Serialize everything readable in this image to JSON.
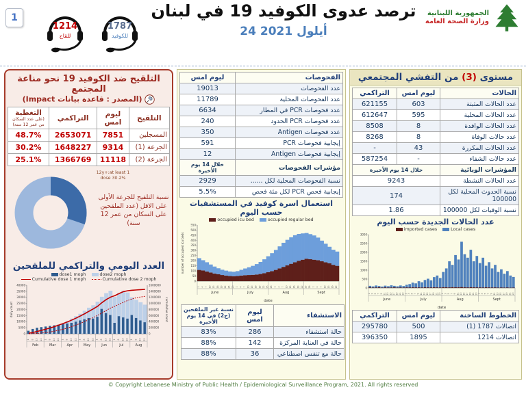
{
  "header": {
    "page_number": "1",
    "title": "ترصد عدوى الكوفيد 19 في لبنان",
    "date": "24 أيلول 2021",
    "hotline_vaccine": {
      "number": "1214",
      "label": "للقاح"
    },
    "hotline_covid": {
      "number": "1787",
      "label": "للكوفيد"
    },
    "ministry_line1": "الجمهورية اللبنانية",
    "ministry_line2": "وزارة الصحة العامة"
  },
  "vaccination": {
    "title": "التلقيح ضد الكوفيد 19  نحو مناعة المجتمع",
    "source": "(المصدر : قاعدة بيانات Impact)",
    "col_vaccination": "التلقيح",
    "col_yesterday": "ليوم امس",
    "col_cumulative": "التراكمي",
    "col_coverage": "التغطية",
    "col_coverage_note": "(على عدد السكان من عمر 12 سنة)",
    "rows": [
      {
        "label": "المسجلين",
        "yesterday": "7851",
        "cumulative": "2653071",
        "coverage": "48.7%"
      },
      {
        "label": "الجرعة (1)",
        "yesterday": "9314",
        "cumulative": "1648227",
        "coverage": "30.2%"
      },
      {
        "label": "الجرعة (2)",
        "yesterday": "11118",
        "cumulative": "1366769",
        "coverage": "25.1%"
      }
    ],
    "donut_note": "12y+:at least 1 dose 30.2%",
    "donut_caption": "نسبة التلقيح للجرعة الأولى على الاقل (عدد الملقحين على السكان من عمر 12 سنة)",
    "daily_chart_title": "العدد اليومي والتراكمي للملقحين"
  },
  "tests": {
    "col_label": "الفحوصات",
    "col_yesterday": "ليوم امس",
    "rows": [
      {
        "label": "عدد الفحوصات",
        "value": "19013"
      },
      {
        "label": "عدد الفحوصات المحلية",
        "value": "11789"
      },
      {
        "label": "عدد فحوصات PCR في المطار",
        "value": "6634"
      },
      {
        "label": "عدد فحوصات PCR الحدود",
        "value": "240"
      },
      {
        "label": "عدد فحوصات Antigen",
        "value": "350"
      },
      {
        "label": "إيجابية فحوصات PCR",
        "value": "591"
      },
      {
        "label": "إيجابية فحوصات Antigen",
        "value": "12"
      }
    ],
    "section_label": "مؤشرات الفحوصات",
    "section_value": "خلال 14 يوم الأخيرة",
    "indicator_rows": [
      {
        "label": "نسبة الفحوصات المحلية لكل ......",
        "value": "2929"
      },
      {
        "label": "إيجابية فحص PCR لكل مئة فحص",
        "value": "5.5%"
      }
    ],
    "beds_chart_title": "استعمال اسرة كوفيد في المستشفيات حسب اليوم"
  },
  "hospitalization": {
    "col_label": "الاستشفاء",
    "col_yesterday": "ليوم امس",
    "col_unvaccinated": "نسبة غير الملقحين (ج2) في 14 يوم الأخيرة",
    "rows": [
      {
        "label": "حالة استشفاء",
        "value": "286",
        "pct": "83%"
      },
      {
        "label": "حالة في العناية المركزة",
        "value": "142",
        "pct": "88%"
      },
      {
        "label": "حالة مع تنفس اصطناعي",
        "value": "36",
        "pct": "88%"
      }
    ]
  },
  "outbreak": {
    "title_pre": "مستوى",
    "title_level": "(3)",
    "title_post": "من التفشي المجتمعي",
    "col_label": "الحالات",
    "col_yesterday": "ليوم امس",
    "col_cumulative": "التراكمي",
    "rows": [
      {
        "label": "عدد الحالات المثبتة",
        "yesterday": "603",
        "cumulative": "621155"
      },
      {
        "label": "عدد الحالات المحلية",
        "yesterday": "595",
        "cumulative": "612647"
      },
      {
        "label": "عدد الحالات الوافدة",
        "yesterday": "8",
        "cumulative": "8508"
      },
      {
        "label": "عدد حالات الوفاة",
        "yesterday": "8",
        "cumulative": "8268"
      },
      {
        "label": "عدد الحالات المكررة",
        "yesterday": "43",
        "cumulative": "-"
      },
      {
        "label": "عدد حالات الشفاء",
        "yesterday": "-",
        "cumulative": "587254"
      }
    ],
    "section_label": "المؤشرات الوبائية",
    "section_value": "خلال 14 يوم الأخيرة",
    "indicator_rows": [
      {
        "label": "عدد الحالات النشطة",
        "value": "9243"
      },
      {
        "label": "نسبة الحدوث المحلية لكل 100000",
        "value": "174"
      },
      {
        "label": "نسبة الوفيات لكل 100000",
        "value": "1.86"
      }
    ],
    "cases_chart_title": "عدد الحالات الجديدة حسب اليوم"
  },
  "hotlines": {
    "col_label": "الخطوط الساخنة",
    "col_yesterday": "ليوم امس",
    "col_cumulative": "التراكمي",
    "rows": [
      {
        "label": "اتصالات 1787 (1)",
        "yesterday": "500",
        "cumulative": "295780"
      },
      {
        "label": "اتصالات 1214",
        "yesterday": "1895",
        "cumulative": "396350"
      }
    ]
  },
  "footer": "© Copyright Lebanese Ministry of Public Health / Epidemiological Surveillance Program, 2021. All rights reserved",
  "chart_data": [
    {
      "id": "donut",
      "type": "pie",
      "title": "نسبة التلقيح للجرعة الأولى على الاقل",
      "labels": [
        "12y+: at least 1 dose",
        "not yet vaccinated"
      ],
      "values": [
        30.2,
        69.8
      ],
      "colors": [
        "#3c6ba8",
        "#9db8dd"
      ],
      "donut": true
    },
    {
      "id": "vaccine",
      "type": "bar",
      "title": "العدد اليومي والتراكمي للملقحين",
      "months": [
        "Feb",
        "Mar",
        "Apr",
        "May",
        "Jun",
        "Jul",
        "Aug"
      ],
      "ylabel_left": "daily count",
      "ylabel_right": "cumulative count",
      "ylim_left": [
        0,
        40000
      ],
      "ystep_left": 5000,
      "ylim_right": [
        0,
        1600000
      ],
      "ystep_right": 200000,
      "legend": [
        "dose1 moph",
        "dose2 moph",
        "Cumulative dose 1 moph",
        "Cumulative dose 2 moph"
      ],
      "colors": {
        "dose1": "#2f5c8f",
        "dose2": "#bdd0e8",
        "cum1": "#c00000",
        "cum2": "#c00000"
      },
      "series": {
        "dose1": [
          2500,
          4000,
          5000,
          5500,
          6000,
          6500,
          7000,
          7500,
          8000,
          8500,
          9000,
          10000,
          11000,
          12000,
          13000,
          12500,
          14000,
          20500,
          17000,
          15500,
          9000,
          14500,
          13500,
          12500,
          15500,
          13000,
          11000,
          9500
        ],
        "dose2": [
          300,
          600,
          1200,
          2200,
          3200,
          4500,
          5500,
          6800,
          8500,
          10500,
          12500,
          14500,
          16500,
          19000,
          21500,
          23500,
          26500,
          30500,
          33500,
          35500,
          30500,
          33500,
          35500,
          34000,
          30000,
          28000,
          26000,
          24000
        ],
        "cum1": [
          20000,
          45000,
          80000,
          115000,
          155000,
          195000,
          240000,
          290000,
          340000,
          395000,
          455000,
          520000,
          590000,
          665000,
          745000,
          825000,
          910000,
          1030000,
          1130000,
          1210000,
          1260000,
          1330000,
          1390000,
          1420000,
          1435000,
          1445000,
          1455000,
          1465000
        ],
        "cum2": [
          2000,
          6000,
          14000,
          26000,
          42000,
          62000,
          88000,
          118000,
          152000,
          192000,
          238000,
          290000,
          346000,
          406000,
          470000,
          538000,
          610000,
          690000,
          770000,
          850000,
          910000,
          975000,
          1040000,
          1100000,
          1150000,
          1190000,
          1215000,
          1235000
        ]
      }
    },
    {
      "id": "beds",
      "type": "area",
      "title": "استعمال اسرة كوفيد في المستشفيات حسب اليوم",
      "months": [
        "June",
        "July",
        "Aug",
        "Sept"
      ],
      "xlabel": "date",
      "ylabel": "number of occupied icu beds",
      "ylim": [
        0,
        550
      ],
      "ystep": 50,
      "legend": [
        "occupied icu bed",
        "occupied regular bed"
      ],
      "colors": [
        "#5e1f1a",
        "#6d9edb"
      ],
      "series": {
        "icu": [
          110,
          105,
          95,
          85,
          75,
          68,
          60,
          55,
          50,
          48,
          50,
          55,
          58,
          60,
          62,
          65,
          70,
          78,
          88,
          98,
          110,
          125,
          140,
          155,
          170,
          185,
          200,
          210,
          220,
          215,
          210,
          205,
          195,
          185,
          175,
          160,
          150
        ],
        "regular": [
          115,
          100,
          90,
          78,
          68,
          58,
          52,
          48,
          45,
          44,
          48,
          56,
          66,
          76,
          88,
          102,
          118,
          136,
          156,
          176,
          196,
          216,
          236,
          250,
          260,
          265,
          263,
          258,
          252,
          246,
          238,
          222,
          202,
          182,
          162,
          148,
          140
        ]
      }
    },
    {
      "id": "cases",
      "type": "bar",
      "title": "عدد الحالات الجديدة حسب اليوم",
      "months": [
        "June",
        "July",
        "Aug",
        "Sept"
      ],
      "xlabel": "date",
      "ylim": [
        0,
        3000
      ],
      "ystep": 500,
      "legend": [
        "imported cases",
        "Local cases"
      ],
      "colors": [
        "#5e1f1a",
        "#4f81bd"
      ],
      "series": {
        "imported": [
          30,
          20,
          25,
          35,
          15,
          30,
          20,
          25,
          30,
          18,
          25,
          20,
          30,
          25,
          35,
          28,
          30,
          25,
          35,
          30,
          28,
          35,
          30,
          25,
          40,
          35,
          30,
          45,
          35,
          40,
          50,
          35,
          30,
          40,
          35,
          30,
          30,
          25,
          35,
          30,
          25,
          30,
          20,
          25,
          20,
          25,
          15,
          20
        ],
        "local": [
          120,
          90,
          140,
          110,
          80,
          130,
          100,
          150,
          120,
          95,
          140,
          110,
          180,
          220,
          300,
          260,
          380,
          320,
          450,
          520,
          430,
          610,
          700,
          560,
          900,
          1100,
          1500,
          1300,
          1850,
          1600,
          2600,
          1900,
          1700,
          2150,
          1500,
          1800,
          1400,
          1700,
          1250,
          1450,
          1100,
          1300,
          900,
          1050,
          800,
          950,
          700,
          620
        ]
      }
    }
  ]
}
